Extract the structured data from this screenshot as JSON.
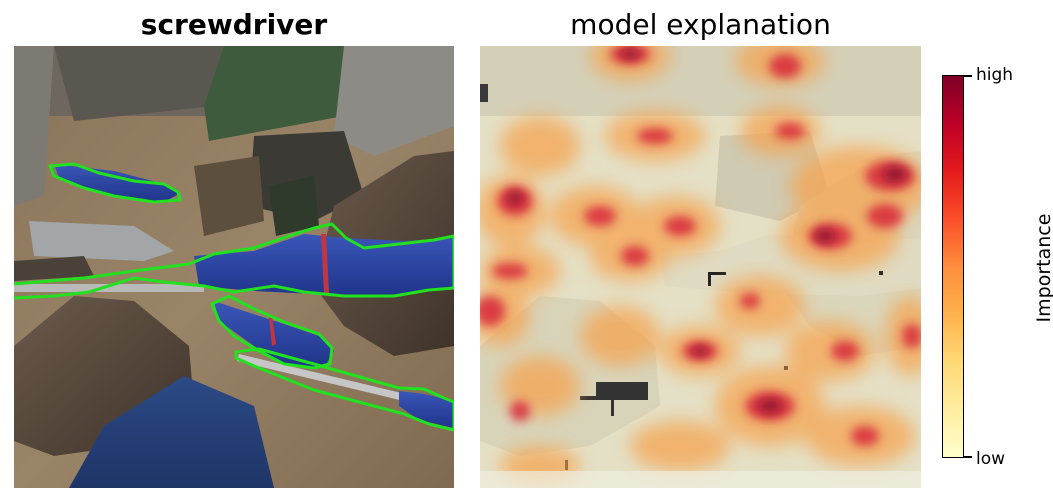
{
  "left_panel": {
    "title": "screwdriver",
    "outline_color": "#22e11e"
  },
  "right_panel": {
    "title": "model explanation"
  },
  "colorbar": {
    "label": "Importance",
    "high_label": "high",
    "low_label": "low",
    "colormap": [
      "#ffffcc",
      "#ffeda0",
      "#fed976",
      "#feb24c",
      "#fd8d3c",
      "#fc4e2a",
      "#e31a1c",
      "#bd0026",
      "#800026"
    ]
  }
}
